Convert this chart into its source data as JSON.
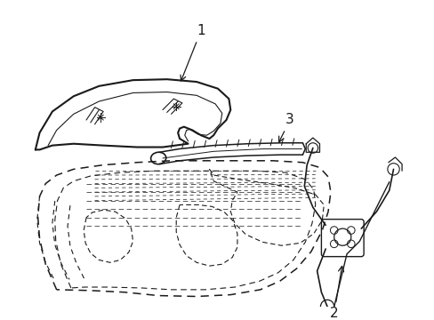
{
  "bg_color": "#ffffff",
  "line_color": "#1a1a1a",
  "label1": "1",
  "label2": "2",
  "label3": "3"
}
